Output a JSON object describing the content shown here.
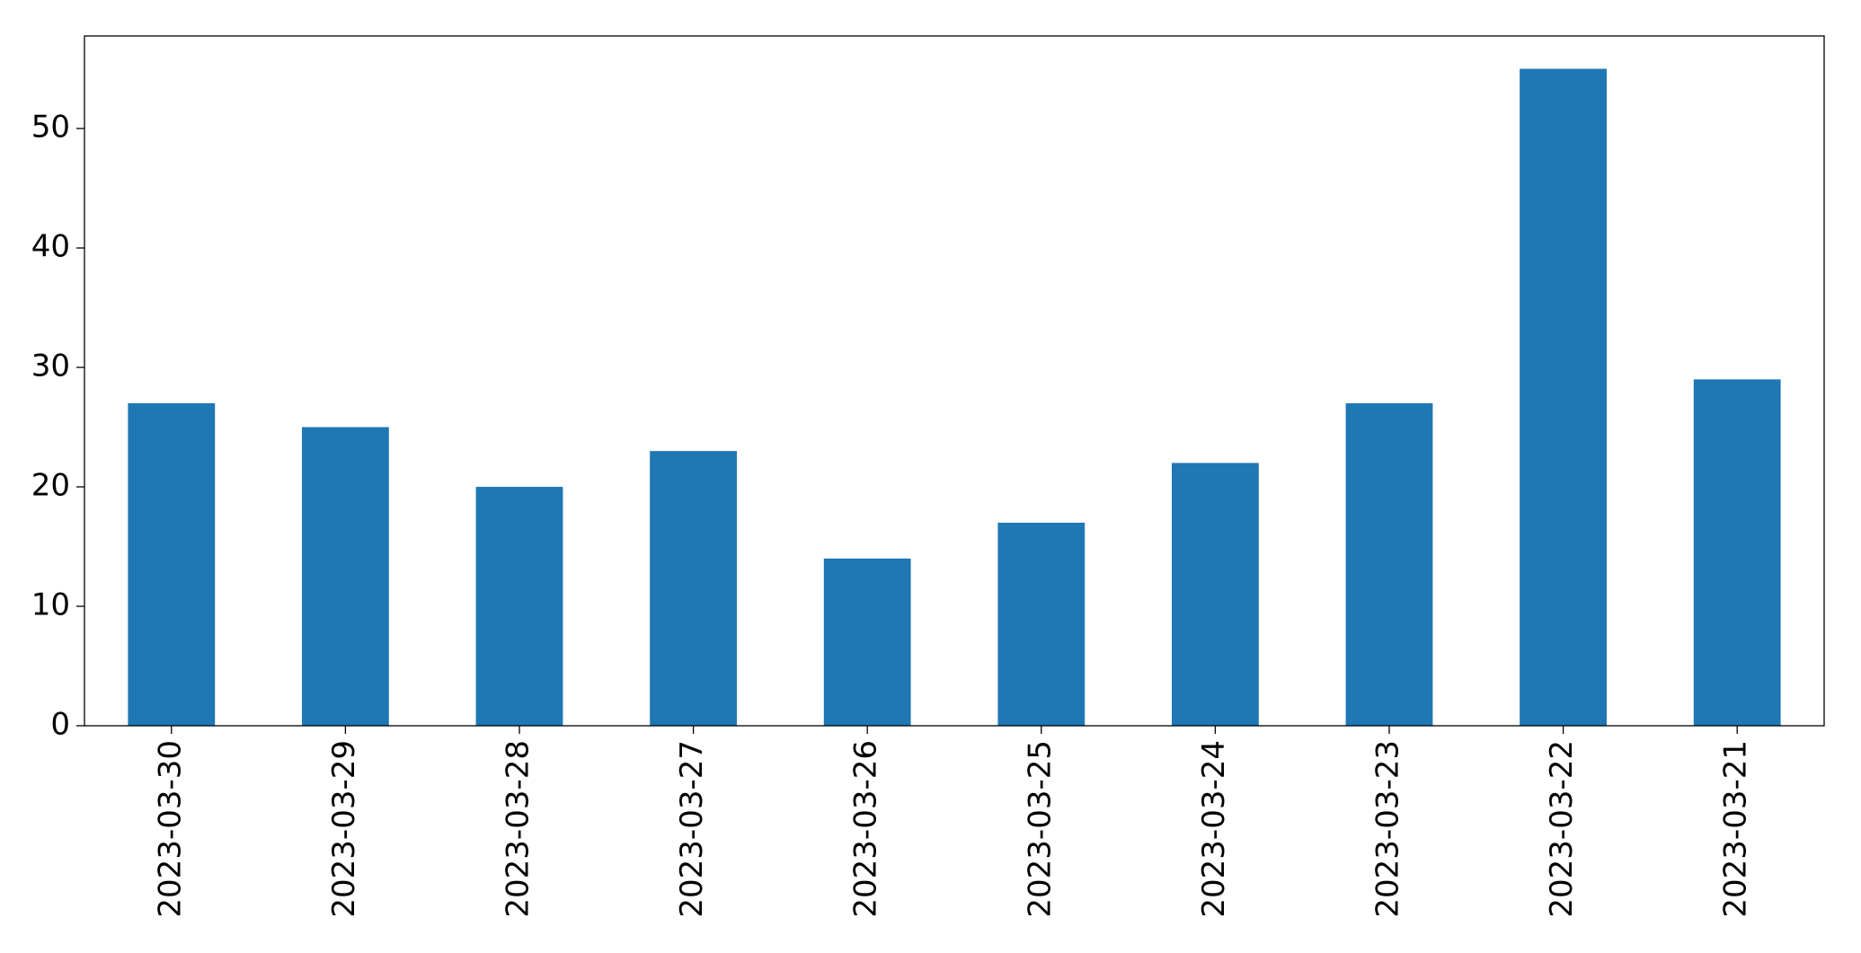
{
  "chart_data": {
    "type": "bar",
    "categories": [
      "2023-03-30",
      "2023-03-29",
      "2023-03-28",
      "2023-03-27",
      "2023-03-26",
      "2023-03-25",
      "2023-03-24",
      "2023-03-23",
      "2023-03-22",
      "2023-03-21"
    ],
    "values": [
      27,
      25,
      20,
      23,
      14,
      17,
      22,
      27,
      55,
      29
    ],
    "color": "#1f77b4",
    "ylim": [
      0,
      57.75
    ],
    "yticks": [
      0,
      10,
      20,
      30,
      40,
      50
    ],
    "grid": false
  }
}
